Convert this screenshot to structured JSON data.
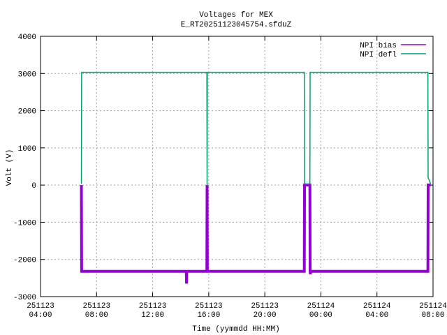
{
  "chart_data": {
    "type": "line",
    "title": "Voltages for MEX",
    "subtitle": "E_RT20251123045754.sfduZ",
    "x_label": "Time (yymmdd HH:MM)",
    "y_label": "Volt (V)",
    "x": [
      "2025-11-23 06:55",
      "2025-11-23 06:56",
      "2025-11-23 14:24",
      "2025-11-23 14:25",
      "2025-11-23 14:26",
      "2025-11-23 15:52",
      "2025-11-23 15:53",
      "2025-11-23 15:54",
      "2025-11-23 22:49",
      "2025-11-23 22:50",
      "2025-11-23 23:13",
      "2025-11-23 23:14",
      "2025-11-23 23:15",
      "2025-11-23 23:16",
      "2025-11-24 07:38",
      "2025-11-24 07:39",
      "2025-11-24 07:50"
    ],
    "series": [
      {
        "name": "NPI bias",
        "color": "#9400d3",
        "values": [
          0,
          -2320,
          -2320,
          -2650,
          -2320,
          -2320,
          0,
          -2320,
          -2320,
          0,
          0,
          -2320,
          -2400,
          -2320,
          -2320,
          0,
          0
        ]
      },
      {
        "name": "NPI defl",
        "color": "#009e73",
        "values": [
          30,
          3030,
          3030,
          3030,
          3030,
          3030,
          0,
          3030,
          3030,
          30,
          30,
          3030,
          3030,
          3030,
          3030,
          200,
          30
        ]
      }
    ],
    "xlim": [
      "2025-11-23 04:00",
      "2025-11-24 08:00"
    ],
    "xticks": [
      {
        "value": "2025-11-23 04:00",
        "label": "251123\n04:00"
      },
      {
        "value": "2025-11-23 08:00",
        "label": "251123\n08:00"
      },
      {
        "value": "2025-11-23 12:00",
        "label": "251123\n12:00"
      },
      {
        "value": "2025-11-23 16:00",
        "label": "251123\n16:00"
      },
      {
        "value": "2025-11-23 20:00",
        "label": "251123\n20:00"
      },
      {
        "value": "2025-11-24 00:00",
        "label": "251124\n00:00"
      },
      {
        "value": "2025-11-24 04:00",
        "label": "251124\n04:00"
      },
      {
        "value": "2025-11-24 08:00",
        "label": "251124\n08:00"
      }
    ],
    "ylim": [
      -3000,
      4000
    ],
    "yticks": [
      -3000,
      -2000,
      -1000,
      0,
      1000,
      2000,
      3000,
      4000
    ],
    "grid": true,
    "legend": "top-right"
  }
}
